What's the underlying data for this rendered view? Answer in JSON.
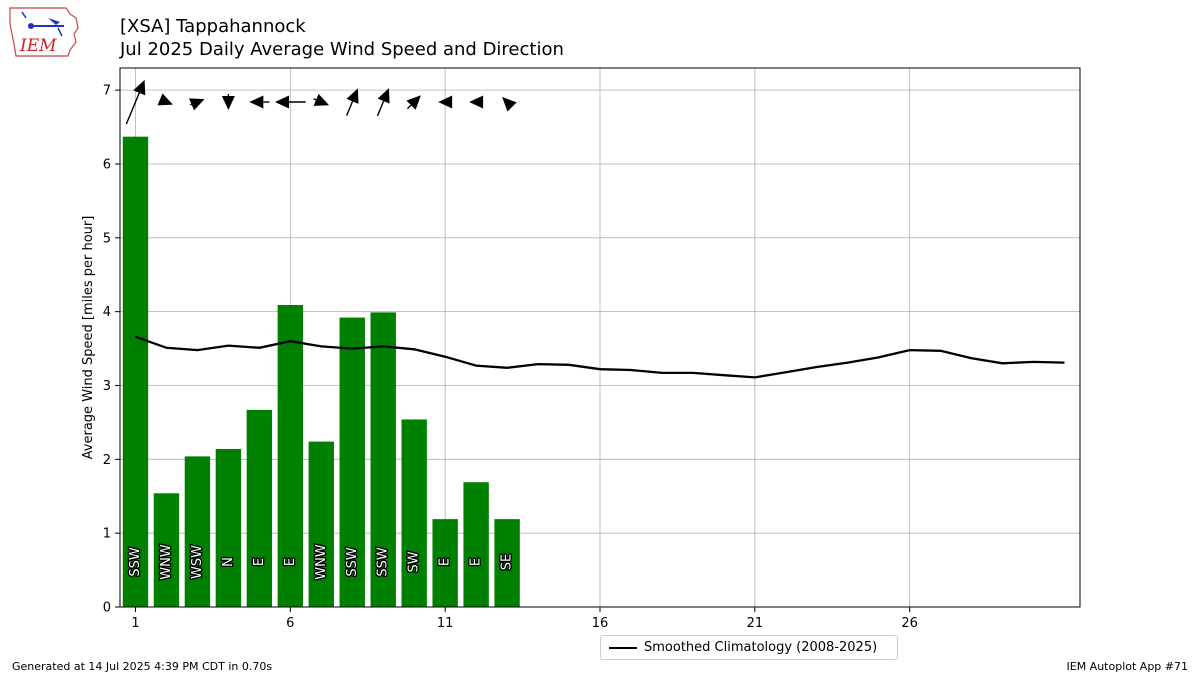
{
  "header": {
    "title_line1": "[XSA] Tappahannock",
    "title_line2": "Jul 2025 Daily Average Wind Speed and Direction"
  },
  "logo": {
    "text": "IEM",
    "icon": "iem-state-logo"
  },
  "footer": {
    "left": "Generated at 14 Jul 2025 4:39 PM CDT in 0.70s",
    "right": "IEM Autoplot App #71"
  },
  "legend": {
    "label": "Smoothed Climatology (2008-2025)"
  },
  "colors": {
    "bar": "#008000",
    "line": "#000000",
    "grid": "#b0b0b0",
    "arrow": "#000000"
  },
  "chart_data": {
    "type": "bar",
    "ylabel": "Average Wind Speed [miles per hour]",
    "xlabel": "",
    "ylim": [
      0,
      7.3
    ],
    "xlim": [
      0.5,
      31.5
    ],
    "xticks": [
      1,
      6,
      11,
      16,
      21,
      26
    ],
    "yticks": [
      0,
      1,
      2,
      3,
      4,
      5,
      6,
      7
    ],
    "grid": true,
    "legend_position": "bottom-center",
    "days": [
      1,
      2,
      3,
      4,
      5,
      6,
      7,
      8,
      9,
      10,
      11,
      12,
      13
    ],
    "values": [
      6.37,
      1.54,
      2.04,
      2.14,
      2.67,
      4.09,
      2.24,
      3.92,
      3.99,
      2.54,
      1.19,
      1.69,
      1.19
    ],
    "directions": [
      "SSW",
      "WNW",
      "WSW",
      "N",
      "E",
      "E",
      "WNW",
      "SSW",
      "SSW",
      "SW",
      "E",
      "E",
      "SE"
    ],
    "arrow_degrees": [
      202.5,
      292.5,
      247.5,
      0,
      90,
      90,
      292.5,
      202.5,
      202.5,
      225,
      90,
      90,
      135
    ],
    "series": [
      {
        "name": "Smoothed Climatology (2008-2025)",
        "type": "line",
        "x": [
          1,
          2,
          3,
          4,
          5,
          6,
          7,
          8,
          9,
          10,
          11,
          12,
          13,
          14,
          15,
          16,
          17,
          18,
          19,
          20,
          21,
          22,
          23,
          24,
          25,
          26,
          27,
          28,
          29,
          30,
          31
        ],
        "values": [
          3.66,
          3.51,
          3.48,
          3.54,
          3.51,
          3.6,
          3.53,
          3.5,
          3.53,
          3.49,
          3.39,
          3.27,
          3.24,
          3.29,
          3.28,
          3.22,
          3.21,
          3.17,
          3.17,
          3.14,
          3.11,
          3.18,
          3.25,
          3.31,
          3.38,
          3.48,
          3.47,
          3.37,
          3.3,
          3.32,
          3.31
        ]
      }
    ]
  }
}
